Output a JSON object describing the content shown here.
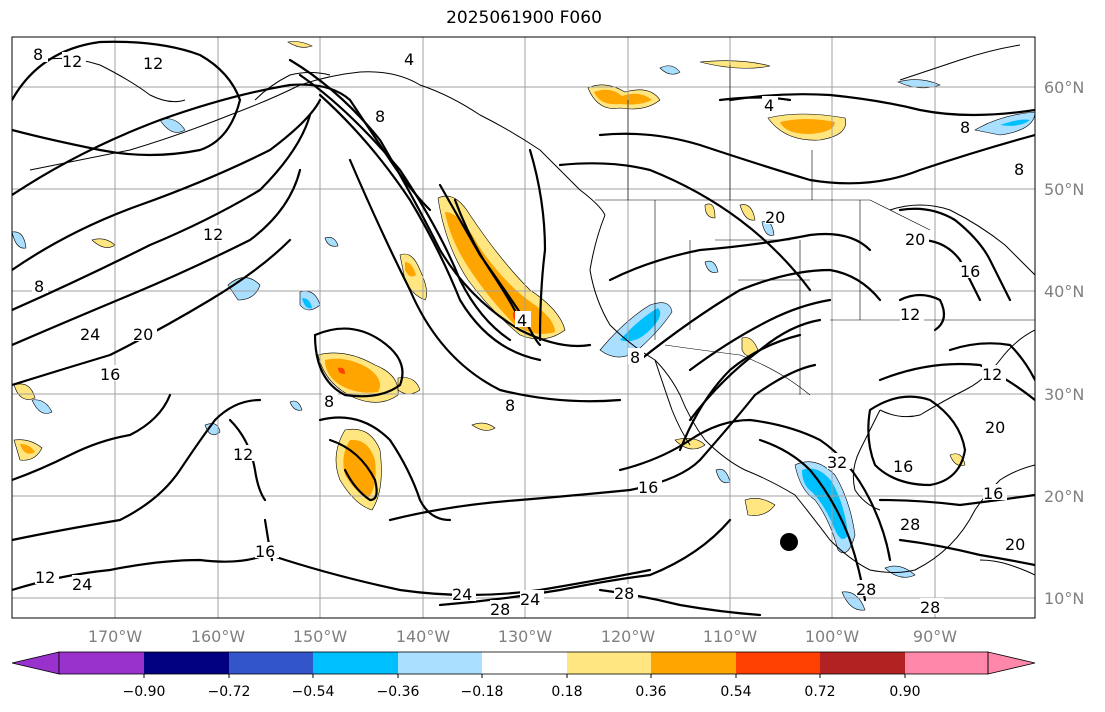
{
  "title": "2025061900 F060",
  "longitude_labels": [
    "170°W",
    "160°W",
    "150°W",
    "140°W",
    "130°W",
    "120°W",
    "110°W",
    "100°W",
    "90°W"
  ],
  "latitude_labels": [
    "60°N",
    "50°N",
    "40°N",
    "30°N",
    "20°N",
    "10°N"
  ],
  "colorbar": {
    "ticks": [
      "−0.90",
      "−0.72",
      "−0.54",
      "−0.36",
      "−0.18",
      "0.18",
      "0.36",
      "0.54",
      "0.72",
      "0.90"
    ],
    "colors": [
      "#9932cc",
      "#000080",
      "#3355cc",
      "#00bfff",
      "#aadfff",
      "#ffffff",
      "#ffe680",
      "#ffa500",
      "#ff4000",
      "#b22222",
      "#ff88aa"
    ]
  },
  "contour_labels": [
    {
      "text": "8"
    },
    {
      "text": "12"
    },
    {
      "text": "12"
    },
    {
      "text": "12"
    },
    {
      "text": "8"
    },
    {
      "text": "24"
    },
    {
      "text": "20"
    },
    {
      "text": "16"
    },
    {
      "text": "8"
    },
    {
      "text": "12"
    },
    {
      "text": "16"
    },
    {
      "text": "12"
    },
    {
      "text": "24"
    },
    {
      "text": "8"
    },
    {
      "text": "4"
    },
    {
      "text": "8"
    },
    {
      "text": "16"
    },
    {
      "text": "24"
    },
    {
      "text": "28"
    },
    {
      "text": "24"
    },
    {
      "text": "28"
    },
    {
      "text": "4"
    },
    {
      "text": "8"
    },
    {
      "text": "20"
    },
    {
      "text": "20"
    },
    {
      "text": "16"
    },
    {
      "text": "12"
    },
    {
      "text": "12"
    },
    {
      "text": "20"
    },
    {
      "text": "16"
    },
    {
      "text": "16"
    },
    {
      "text": "32"
    },
    {
      "text": "28"
    },
    {
      "text": "28"
    },
    {
      "text": "28"
    },
    {
      "text": "20"
    },
    {
      "text": "8"
    },
    {
      "text": "8"
    },
    {
      "text": "4"
    }
  ]
}
